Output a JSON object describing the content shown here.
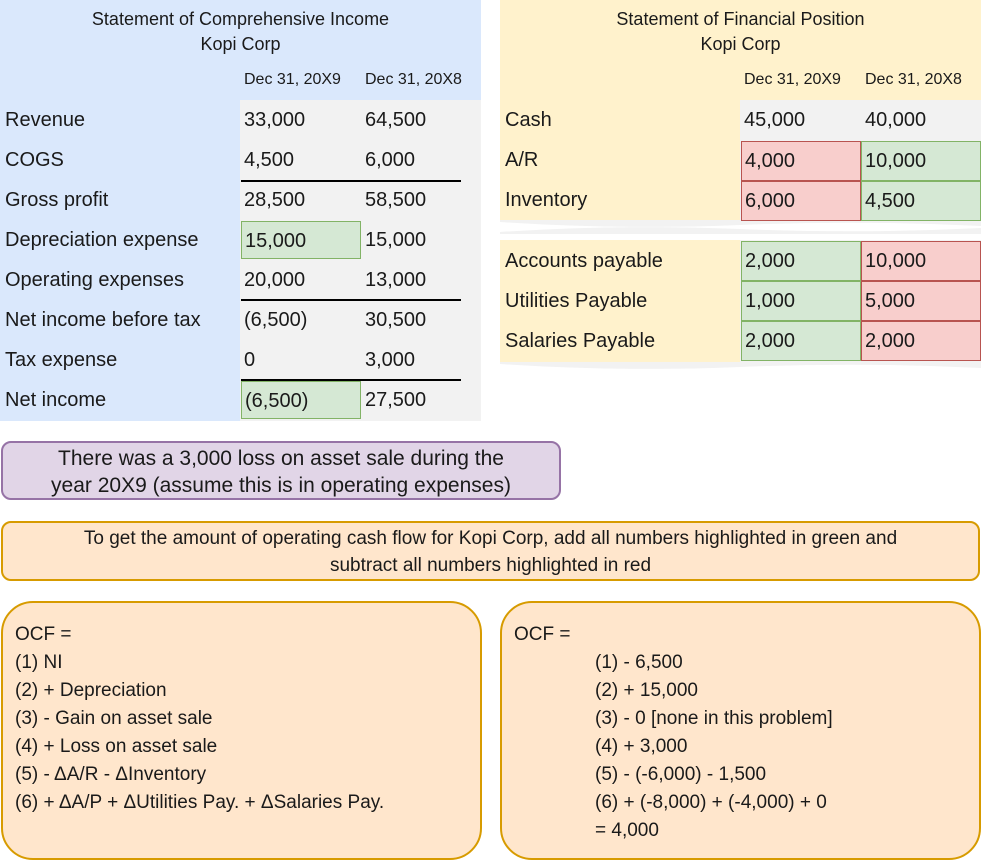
{
  "income_statement": {
    "title": "Statement of Comprehensive Income",
    "company": "Kopi Corp",
    "col1": "Dec 31, 20X9",
    "col2": "Dec 31, 20X8",
    "rows": [
      {
        "label": "Revenue",
        "v1": "33,000",
        "v2": "64,500"
      },
      {
        "label": "COGS",
        "v1": "4,500",
        "v2": "6,000"
      },
      {
        "label": "Gross profit",
        "v1": "28,500",
        "v2": "58,500"
      },
      {
        "label": "Depreciation expense",
        "v1": "15,000",
        "v2": "15,000"
      },
      {
        "label": "Operating expenses",
        "v1": "20,000",
        "v2": "13,000"
      },
      {
        "label": "Net income before tax",
        "v1": "(6,500)",
        "v2": "30,500"
      },
      {
        "label": "Tax expense",
        "v1": "0",
        "v2": "3,000"
      },
      {
        "label": "Net income",
        "v1": "(6,500)",
        "v2": "27,500"
      }
    ]
  },
  "financial_position": {
    "title": "Statement of Financial Position",
    "company": "Kopi Corp",
    "col1": "Dec 31, 20X9",
    "col2": "Dec 31, 20X8",
    "assets": [
      {
        "label": "Cash",
        "v1": "45,000",
        "v2": "40,000"
      },
      {
        "label": "A/R",
        "v1": "4,000",
        "v2": "10,000"
      },
      {
        "label": "Inventory",
        "v1": "6,000",
        "v2": "4,500"
      }
    ],
    "liabilities": [
      {
        "label": "Accounts payable",
        "v1": "2,000",
        "v2": "10,000"
      },
      {
        "label": "Utilities Payable",
        "v1": "1,000",
        "v2": "5,000"
      },
      {
        "label": "Salaries Payable",
        "v1": "2,000",
        "v2": "2,000"
      }
    ]
  },
  "notes": {
    "loss_note": [
      "There was a 3,000 loss on asset sale during the",
      "year 20X9 (assume this is in operating expenses)"
    ],
    "instruction": [
      "To get the amount of operating cash flow for Kopi Corp, add all numbers highlighted in green and",
      "subtract all numbers highlighted in red"
    ]
  },
  "ocf_formula": {
    "heading": "OCF =",
    "lines": [
      "(1) NI",
      "(2) + Depreciation",
      "(3) - Gain on asset sale",
      "(4) + Loss on asset sale",
      "(5) - ΔA/R - ΔInventory",
      "(6) + ΔA/P + ΔUtilities Pay. + ΔSalaries Pay."
    ]
  },
  "ocf_calc": {
    "heading": "OCF =",
    "lines": [
      "(1) - 6,500",
      "(2) + 15,000",
      "(3) - 0 [none in this problem]",
      "(4) + 3,000",
      "(5) - (-6,000) - 1,500",
      "(6) + (-8,000) + (-4,000) + 0",
      "= 4,000"
    ]
  },
  "colors": {
    "green_fill": "#d5e8d4",
    "green_border": "#82b366",
    "red_fill": "#f8cecc",
    "red_border": "#b85450",
    "blue_header": "#dae8fc",
    "yellow_header": "#fff2cc",
    "purple_note": "#e1d5e7",
    "orange_note": "#ffe6cc"
  }
}
